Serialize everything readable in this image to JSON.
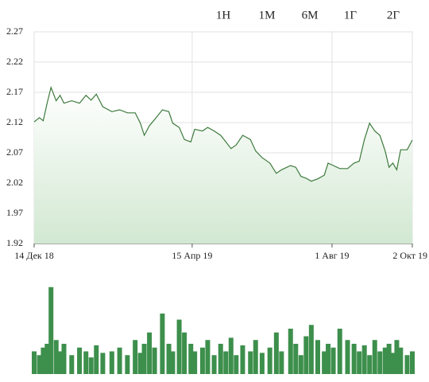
{
  "range_buttons": [
    {
      "label": "1Н",
      "active": false
    },
    {
      "label": "1М",
      "active": false
    },
    {
      "label": "6М",
      "active": false
    },
    {
      "label": "1Г",
      "active": true
    },
    {
      "label": "2Г",
      "active": false
    }
  ],
  "chart_data": [
    {
      "type": "area",
      "x": [
        "2018-12-14",
        "2018-12-18",
        "2018-12-21",
        "2018-12-24",
        "2018-12-27",
        "2018-12-31",
        "2019-01-03",
        "2019-01-06",
        "2019-01-12",
        "2019-01-18",
        "2019-01-23",
        "2019-01-27",
        "2019-01-31",
        "2019-02-05",
        "2019-02-12",
        "2019-02-18",
        "2019-02-24",
        "2019-03-02",
        "2019-03-06",
        "2019-03-09",
        "2019-03-13",
        "2019-03-17",
        "2019-03-23",
        "2019-03-28",
        "2019-03-31",
        "2019-04-05",
        "2019-04-09",
        "2019-04-14",
        "2019-04-17",
        "2019-04-23",
        "2019-04-27",
        "2019-05-02",
        "2019-05-07",
        "2019-05-11",
        "2019-05-15",
        "2019-05-19",
        "2019-05-24",
        "2019-05-30",
        "2019-06-03",
        "2019-06-08",
        "2019-06-14",
        "2019-06-19",
        "2019-06-23",
        "2019-06-30",
        "2019-07-04",
        "2019-07-08",
        "2019-07-12",
        "2019-07-16",
        "2019-07-21",
        "2019-07-26",
        "2019-07-29",
        "2019-08-02",
        "2019-08-07",
        "2019-08-13",
        "2019-08-18",
        "2019-08-22",
        "2019-08-26",
        "2019-08-30",
        "2019-09-03",
        "2019-09-07",
        "2019-09-11",
        "2019-09-14",
        "2019-09-17",
        "2019-09-20",
        "2019-09-23",
        "2019-09-28",
        "2019-10-02"
      ],
      "series": [
        {
          "color": "#3d7a3d",
          "values": [
            2.121,
            2.128,
            2.123,
            2.152,
            2.178,
            2.156,
            2.165,
            2.152,
            2.156,
            2.152,
            2.165,
            2.157,
            2.167,
            2.146,
            2.138,
            2.141,
            2.136,
            2.136,
            2.119,
            2.099,
            2.115,
            2.125,
            2.141,
            2.138,
            2.119,
            2.112,
            2.092,
            2.088,
            2.109,
            2.106,
            2.112,
            2.106,
            2.099,
            2.088,
            2.077,
            2.083,
            2.099,
            2.092,
            2.073,
            2.062,
            2.053,
            2.036,
            2.042,
            2.049,
            2.046,
            2.031,
            2.028,
            2.023,
            2.027,
            2.033,
            2.053,
            2.049,
            2.044,
            2.044,
            2.053,
            2.056,
            2.092,
            2.119,
            2.106,
            2.099,
            2.073,
            2.046,
            2.053,
            2.042,
            2.075,
            2.075,
            2.091
          ]
        }
      ],
      "xlim": [
        "2018-12-14",
        "2019-10-02"
      ],
      "xticks": [
        {
          "value": "2018-12-14",
          "label": "14 Дек 18"
        },
        {
          "value": "2019-04-15",
          "label": "15 Апр 19"
        },
        {
          "value": "2019-08-01",
          "label": "1 Авг 19"
        },
        {
          "value": "2019-10-02",
          "label": "2 Окт 19"
        }
      ],
      "ylim": [
        1.92,
        2.27
      ],
      "yticks": [
        2.27,
        2.22,
        2.17,
        2.12,
        2.07,
        2.02,
        1.97,
        1.92
      ],
      "grid": true
    },
    {
      "type": "bar",
      "color": "#3d8f4c",
      "values": [
        30,
        25,
        35,
        40,
        115,
        45,
        30,
        40,
        25,
        35,
        30,
        22,
        38,
        28,
        30,
        35,
        25,
        45,
        28,
        40,
        55,
        35,
        80,
        40,
        30,
        72,
        55,
        40,
        30,
        35,
        45,
        25,
        40,
        30,
        48,
        25,
        38,
        30,
        45,
        28,
        35,
        55,
        30,
        60,
        40,
        25,
        50,
        65,
        45,
        30,
        40,
        35,
        60,
        45,
        40,
        30,
        38,
        25,
        45,
        30,
        35,
        40,
        28,
        45,
        35,
        25,
        30
      ],
      "ylim": [
        0,
        120
      ]
    }
  ]
}
